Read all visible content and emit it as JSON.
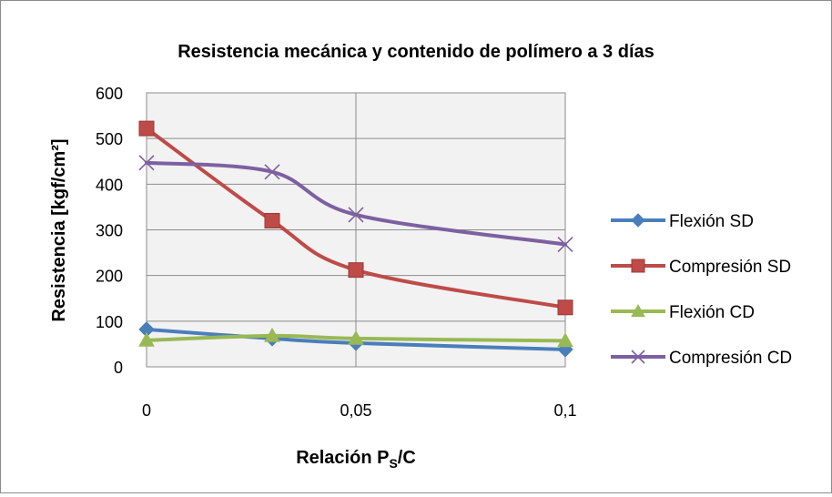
{
  "chart_data": {
    "type": "line",
    "title": "Resistencia mecánica y contenido de polímero a 3 días",
    "xlabel_main": "Relación P",
    "xlabel_sub": "S",
    "xlabel_tail": "/C",
    "ylabel": "Resistencia [kgf/cm²]",
    "x": [
      0,
      0.03,
      0.05,
      0.1
    ],
    "x_tick_labels": [
      "0",
      "0,05",
      "0,1"
    ],
    "x_tick_values": [
      0,
      0.05,
      0.1
    ],
    "xlim": [
      0,
      0.1
    ],
    "ylim": [
      0,
      600
    ],
    "y_ticks": [
      "0",
      "100",
      "200",
      "300",
      "400",
      "500",
      "600"
    ],
    "grid": true,
    "legend_position": "right",
    "series": [
      {
        "name": "Flexión SD",
        "color": "#4a7ebb",
        "marker": "diamond",
        "values": [
          82,
          62,
          52,
          38
        ]
      },
      {
        "name": "Compresión SD",
        "color": "#be4b48",
        "marker": "square",
        "values": [
          522,
          320,
          212,
          130
        ]
      },
      {
        "name": "Flexión CD",
        "color": "#98b954",
        "marker": "triangle",
        "values": [
          58,
          68,
          62,
          57
        ]
      },
      {
        "name": "Compresión CD",
        "color": "#7d60a0",
        "marker": "x",
        "values": [
          447,
          427,
          333,
          268
        ]
      }
    ]
  }
}
